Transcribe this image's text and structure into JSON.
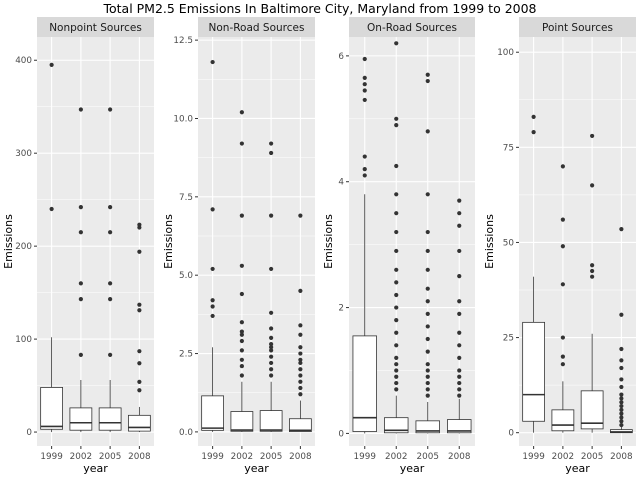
{
  "title": "Total PM2.5 Emissions In Baltimore City, Maryland from 1999 to 2008",
  "chart_data": [
    {
      "type": "box",
      "title": "Nonpoint Sources",
      "xlabel": "year",
      "ylabel": "Emissions",
      "categories": [
        "1999",
        "2002",
        "2005",
        "2008"
      ],
      "ylim": [
        -15,
        425
      ],
      "yticks": [
        0,
        100,
        200,
        300,
        400
      ],
      "ytick_labels": [
        "0",
        "100",
        "200",
        "300",
        "400"
      ],
      "grid": true,
      "boxes": [
        {
          "q1": 3,
          "median": 6,
          "q3": 48,
          "whisker_low": 0,
          "whisker_high": 102,
          "outliers": [
            240,
            395
          ]
        },
        {
          "q1": 2,
          "median": 10,
          "q3": 26,
          "whisker_low": 0,
          "whisker_high": 56,
          "outliers": [
            83,
            143,
            160,
            215,
            242,
            347
          ]
        },
        {
          "q1": 2,
          "median": 10,
          "q3": 26,
          "whisker_low": 0,
          "whisker_high": 56,
          "outliers": [
            83,
            143,
            160,
            215,
            242,
            347
          ]
        },
        {
          "q1": 1,
          "median": 5,
          "q3": 18,
          "whisker_low": 0,
          "whisker_high": 27,
          "outliers": [
            45,
            54,
            74,
            87,
            131,
            137,
            194,
            220,
            223
          ]
        }
      ]
    },
    {
      "type": "box",
      "title": "Non-Road Sources",
      "xlabel": "year",
      "ylabel": "Emissions",
      "categories": [
        "1999",
        "2002",
        "2005",
        "2008"
      ],
      "ylim": [
        -0.45,
        12.6
      ],
      "yticks": [
        0,
        2.5,
        5,
        7.5,
        10,
        12.5
      ],
      "ytick_labels": [
        "0.0",
        "2.5",
        "5.0",
        "7.5",
        "10.0",
        "12.5"
      ],
      "grid": true,
      "boxes": [
        {
          "q1": 0.05,
          "median": 0.12,
          "q3": 1.15,
          "whisker_low": 0,
          "whisker_high": 2.7,
          "outliers": [
            3.7,
            4.0,
            4.2,
            5.2,
            7.1,
            11.8
          ]
        },
        {
          "q1": 0.02,
          "median": 0.06,
          "q3": 0.65,
          "whisker_low": 0,
          "whisker_high": 1.6,
          "outliers": [
            1.8,
            2.1,
            2.3,
            2.6,
            2.9,
            3.1,
            3.2,
            3.5,
            4.4,
            5.3,
            6.9,
            9.2,
            10.2
          ]
        },
        {
          "q1": 0.02,
          "median": 0.06,
          "q3": 0.68,
          "whisker_low": 0,
          "whisker_high": 1.6,
          "outliers": [
            1.8,
            2.0,
            2.2,
            2.4,
            2.6,
            2.7,
            2.8,
            3.0,
            3.3,
            3.8,
            5.2,
            6.9,
            8.9,
            9.2
          ]
        },
        {
          "q1": 0.01,
          "median": 0.05,
          "q3": 0.42,
          "whisker_low": 0,
          "whisker_high": 1.0,
          "outliers": [
            1.2,
            1.4,
            1.6,
            1.8,
            2.0,
            2.2,
            2.3,
            2.5,
            2.7,
            3.1,
            3.4,
            4.5,
            6.9
          ]
        }
      ]
    },
    {
      "type": "box",
      "title": "On-Road Sources",
      "xlabel": "year",
      "ylabel": "Emissions",
      "categories": [
        "1999",
        "2002",
        "2005",
        "2008"
      ],
      "ylim": [
        -0.2,
        6.3
      ],
      "yticks": [
        0,
        2,
        4,
        6
      ],
      "ytick_labels": [
        "0",
        "2",
        "4",
        "6"
      ],
      "grid": true,
      "boxes": [
        {
          "q1": 0.03,
          "median": 0.25,
          "q3": 1.55,
          "whisker_low": 0,
          "whisker_high": 3.8,
          "outliers": [
            4.1,
            4.2,
            4.4,
            5.3,
            5.45,
            5.55,
            5.65,
            5.95
          ]
        },
        {
          "q1": 0.01,
          "median": 0.05,
          "q3": 0.25,
          "whisker_low": 0,
          "whisker_high": 0.6,
          "outliers": [
            0.7,
            0.8,
            0.9,
            1.0,
            1.1,
            1.2,
            1.4,
            1.6,
            1.8,
            2.0,
            2.2,
            2.4,
            2.6,
            2.9,
            3.2,
            3.5,
            3.8,
            4.25,
            4.9,
            5.0,
            6.2
          ]
        },
        {
          "q1": 0.01,
          "median": 0.04,
          "q3": 0.2,
          "whisker_low": 0,
          "whisker_high": 0.5,
          "outliers": [
            0.6,
            0.7,
            0.8,
            0.9,
            1.0,
            1.1,
            1.3,
            1.5,
            1.7,
            1.9,
            2.1,
            2.3,
            2.6,
            2.9,
            3.2,
            3.8,
            4.8,
            5.6,
            5.7
          ]
        },
        {
          "q1": 0.01,
          "median": 0.04,
          "q3": 0.22,
          "whisker_low": 0,
          "whisker_high": 0.55,
          "outliers": [
            0.6,
            0.7,
            0.8,
            0.9,
            1.0,
            1.2,
            1.4,
            1.6,
            1.9,
            2.1,
            2.5,
            2.9,
            3.3,
            3.5,
            3.7
          ]
        }
      ]
    },
    {
      "type": "box",
      "title": "Point Sources",
      "xlabel": "year",
      "ylabel": "Emissions",
      "categories": [
        "1999",
        "2002",
        "2005",
        "2008"
      ],
      "ylim": [
        -3.5,
        104
      ],
      "yticks": [
        0,
        25,
        50,
        75,
        100
      ],
      "ytick_labels": [
        "0",
        "25",
        "50",
        "75",
        "100"
      ],
      "grid": true,
      "boxes": [
        {
          "q1": 3,
          "median": 10,
          "q3": 29,
          "whisker_low": 0,
          "whisker_high": 41,
          "outliers": [
            79,
            83
          ]
        },
        {
          "q1": 0.5,
          "median": 2,
          "q3": 6,
          "whisker_low": 0,
          "whisker_high": 13.5,
          "outliers": [
            18,
            20,
            25,
            39,
            49,
            56,
            70
          ]
        },
        {
          "q1": 1,
          "median": 2.5,
          "q3": 11,
          "whisker_low": 0,
          "whisker_high": 26,
          "outliers": [
            41,
            42.5,
            44,
            65,
            78
          ]
        },
        {
          "q1": 0,
          "median": 0.2,
          "q3": 0.8,
          "whisker_low": 0,
          "whisker_high": 1.5,
          "outliers": [
            2,
            3,
            4,
            5,
            6,
            7,
            8,
            9,
            10,
            12,
            14,
            17,
            19,
            22,
            31,
            53.5
          ]
        }
      ]
    }
  ]
}
